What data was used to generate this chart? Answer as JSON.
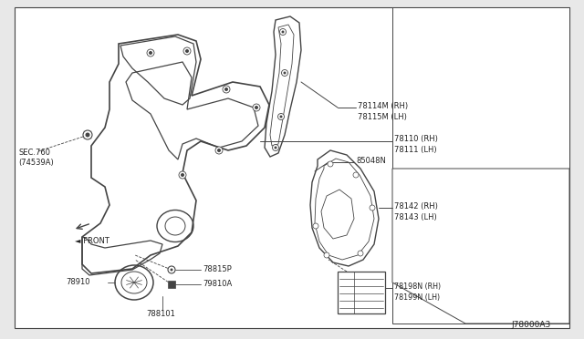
{
  "bg_color": "#e8e8e8",
  "diagram_bg": "#ffffff",
  "line_color": "#444444",
  "text_color": "#222222",
  "diagram_id": "J78000A3",
  "figsize": [
    6.4,
    3.72
  ],
  "dpi": 100,
  "labels": {
    "78114M": "78114M (RH)",
    "78115M": "78115M (LH)",
    "78110": "78110 (RH)",
    "78111": "78111 (LH)",
    "85048N": "85048N",
    "78142": "78142 (RH)",
    "78143": "78143 (LH)",
    "78198N": "78198N (RH)",
    "78199N": "78199N (LH)",
    "78910": "78910",
    "78815P": "78815P",
    "79810A": "79810A",
    "788101": "788101",
    "SEC760": "SEC.760",
    "74539A": "(74539A)",
    "FRONT": "FRONT"
  }
}
